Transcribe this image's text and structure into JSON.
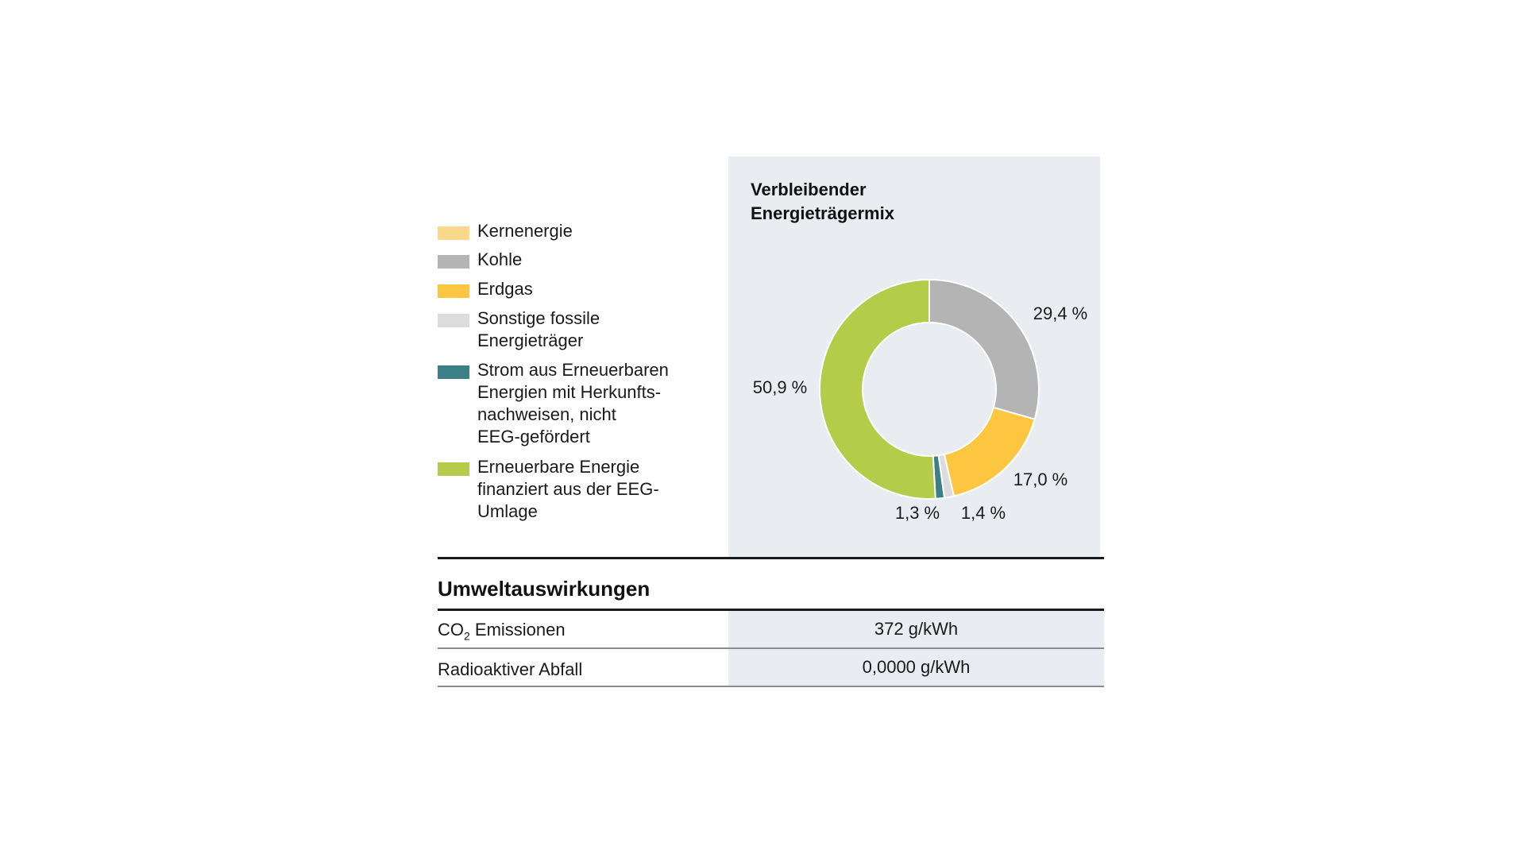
{
  "chart_data": {
    "type": "pie",
    "title": "Verbleibender Energieträgermix",
    "donut": true,
    "slices": [
      {
        "name": "Kernenergie",
        "value": 0.0,
        "label": "",
        "color": "#fbd98c"
      },
      {
        "name": "Kohle",
        "value": 29.4,
        "label": "29,4 %",
        "color": "#b4b4b4"
      },
      {
        "name": "Erdgas",
        "value": 17.0,
        "label": "17,0 %",
        "color": "#fcc640"
      },
      {
        "name": "Sonstige fossile Energieträger",
        "value": 1.4,
        "label": "1,4 %",
        "color": "#dcdcdc"
      },
      {
        "name": "Strom aus Erneuerbaren Energien mit Herkunftsnachweisen, nicht EEG-gefördert",
        "value": 1.3,
        "label": "1,3 %",
        "color": "#3b7f87"
      },
      {
        "name": "Erneuerbare Energie finanziert aus der EEG-Umlage",
        "value": 50.9,
        "label": "50,9 %",
        "color": "#b5cc4a"
      }
    ]
  },
  "legend": [
    {
      "label": "Kernenergie",
      "color": "#fbd98c"
    },
    {
      "label": "Kohle",
      "color": "#b4b4b4"
    },
    {
      "label": "Erdgas",
      "color": "#fcc640"
    },
    {
      "label": "Sonstige fossile Energieträger",
      "color": "#dcdcdc"
    },
    {
      "label": "Strom aus Erneuerbaren Energien mit Herkunfts-nachweisen, nicht EEG-gefördert",
      "color": "#3b7f87"
    },
    {
      "label": "Erneuerbare Energie finanziert aus der EEG-Umlage",
      "color": "#b5cc4a"
    }
  ],
  "legend_lines": [
    [
      "Kernenergie"
    ],
    [
      "Kohle"
    ],
    [
      "Erdgas"
    ],
    [
      "Sonstige fossile",
      "Energieträger"
    ],
    [
      "Strom aus Erneuerbaren",
      "Energien mit Herkunfts-",
      "nachweisen, nicht",
      "EEG-gefördert"
    ],
    [
      "Erneuerbare Energie",
      "finanziert aus der EEG-",
      "Umlage"
    ]
  ],
  "environment": {
    "title": "Umweltauswirkungen",
    "co2": {
      "label_main": "CO",
      "label_sub": "2",
      "label_rest": " Emissionen",
      "value": "372 g/kWh"
    },
    "waste": {
      "label": "Radioaktiver Abfall",
      "value": "0,0000 g/kWh"
    }
  }
}
